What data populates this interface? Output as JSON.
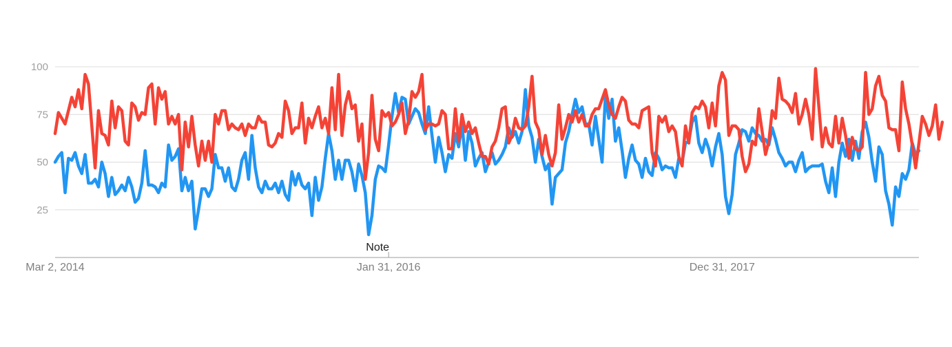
{
  "chart_data": {
    "type": "line",
    "title": "",
    "xlabel": "",
    "ylabel": "",
    "ylim": [
      0,
      100
    ],
    "yticks": [
      25,
      50,
      75,
      100
    ],
    "x_tick_labels": [
      "Mar 2, 2014",
      "Jan 31, 2016",
      "Dec 31, 2017"
    ],
    "x_tick_indices": [
      0,
      100,
      200
    ],
    "annotation": {
      "label": "Note",
      "index": 100
    },
    "grid": true,
    "colors": {
      "blue": "#2196f3",
      "red": "#f44336",
      "grid": "#dcdcdc",
      "axis": "#9e9e9e"
    },
    "series": [
      {
        "color": "#2196f3",
        "values": [
          50,
          53,
          55,
          34,
          52,
          51,
          55,
          48,
          44,
          54,
          39,
          39,
          41,
          37,
          50,
          44,
          32,
          42,
          33,
          35,
          38,
          35,
          42,
          37,
          29,
          31,
          39,
          56,
          38,
          38,
          37,
          34,
          39,
          37,
          59,
          51,
          53,
          57,
          35,
          42,
          35,
          40,
          15,
          25,
          36,
          36,
          32,
          36,
          54,
          47,
          47,
          40,
          47,
          37,
          35,
          41,
          51,
          55,
          41,
          64,
          47,
          37,
          34,
          40,
          36,
          36,
          39,
          34,
          40,
          33,
          30,
          45,
          38,
          44,
          38,
          36,
          39,
          22,
          42,
          30,
          37,
          52,
          65,
          56,
          41,
          51,
          41,
          51,
          51,
          45,
          35,
          49,
          43,
          34,
          12,
          22,
          41,
          48,
          47,
          45,
          59,
          74,
          86,
          76,
          84,
          83,
          70,
          74,
          78,
          76,
          70,
          65,
          79,
          64,
          50,
          63,
          55,
          45,
          54,
          52,
          65,
          58,
          70,
          51,
          66,
          60,
          48,
          52,
          55,
          45,
          50,
          55,
          49,
          51,
          54,
          58,
          68,
          63,
          66,
          60,
          66,
          88,
          69,
          63,
          50,
          62,
          53,
          46,
          49,
          28,
          42,
          44,
          46,
          60,
          66,
          75,
          83,
          76,
          79,
          70,
          70,
          59,
          74,
          62,
          50,
          85,
          73,
          83,
          61,
          68,
          56,
          42,
          52,
          59,
          51,
          49,
          42,
          52,
          45,
          43,
          55,
          52,
          46,
          48,
          47,
          47,
          42,
          52,
          50,
          60,
          61,
          71,
          74,
          60,
          55,
          62,
          57,
          48,
          58,
          65,
          54,
          32,
          23,
          33,
          54,
          60,
          67,
          66,
          61,
          68,
          65,
          64,
          61,
          62,
          59,
          68,
          62,
          55,
          52,
          48,
          50,
          50,
          45,
          51,
          55,
          45,
          47,
          48,
          48,
          48,
          49,
          40,
          34,
          47,
          32,
          50,
          60,
          53,
          62,
          51,
          61,
          52,
          66,
          71,
          63,
          50,
          40,
          58,
          54,
          35,
          28,
          17,
          37,
          32,
          44,
          41,
          46,
          60,
          54,
          56
        ]
      },
      {
        "color": "#f44336",
        "values": [
          65,
          76,
          73,
          70,
          77,
          84,
          79,
          88,
          78,
          96,
          91,
          69,
          47,
          77,
          65,
          64,
          59,
          82,
          68,
          79,
          77,
          61,
          59,
          81,
          79,
          72,
          76,
          75,
          89,
          91,
          70,
          89,
          83,
          87,
          70,
          74,
          70,
          75,
          46,
          71,
          58,
          74,
          59,
          48,
          61,
          51,
          61,
          50,
          75,
          70,
          77,
          77,
          67,
          70,
          68,
          67,
          70,
          64,
          70,
          68,
          68,
          74,
          71,
          71,
          59,
          58,
          60,
          65,
          63,
          82,
          77,
          65,
          68,
          68,
          81,
          60,
          73,
          68,
          74,
          79,
          68,
          73,
          65,
          89,
          67,
          96,
          64,
          80,
          87,
          78,
          80,
          61,
          70,
          41,
          55,
          85,
          62,
          56,
          77,
          74,
          76,
          69,
          71,
          75,
          81,
          65,
          72,
          87,
          84,
          87,
          96,
          67,
          70,
          70,
          69,
          70,
          77,
          75,
          57,
          57,
          78,
          61,
          75,
          66,
          71,
          65,
          68,
          60,
          53,
          53,
          49,
          58,
          61,
          68,
          78,
          79,
          60,
          64,
          73,
          68,
          67,
          69,
          79,
          95,
          71,
          67,
          54,
          64,
          54,
          48,
          55,
          80,
          62,
          68,
          75,
          71,
          77,
          71,
          75,
          69,
          69,
          75,
          78,
          78,
          83,
          88,
          80,
          75,
          73,
          79,
          84,
          82,
          72,
          70,
          70,
          68,
          77,
          78,
          79,
          55,
          48,
          74,
          71,
          74,
          66,
          69,
          66,
          53,
          48,
          69,
          60,
          76,
          79,
          78,
          82,
          79,
          68,
          81,
          69,
          90,
          97,
          93,
          64,
          69,
          69,
          67,
          53,
          45,
          49,
          61,
          59,
          78,
          66,
          54,
          61,
          77,
          73,
          94,
          83,
          82,
          80,
          76,
          86,
          70,
          75,
          83,
          75,
          62,
          99,
          79,
          58,
          68,
          60,
          58,
          74,
          60,
          73,
          64,
          52,
          63,
          57,
          56,
          58,
          97,
          75,
          78,
          90,
          95,
          85,
          82,
          68,
          67,
          67,
          56,
          92,
          78,
          70,
          59,
          47,
          60,
          74,
          70,
          64,
          69,
          80,
          62,
          71
        ]
      }
    ]
  }
}
